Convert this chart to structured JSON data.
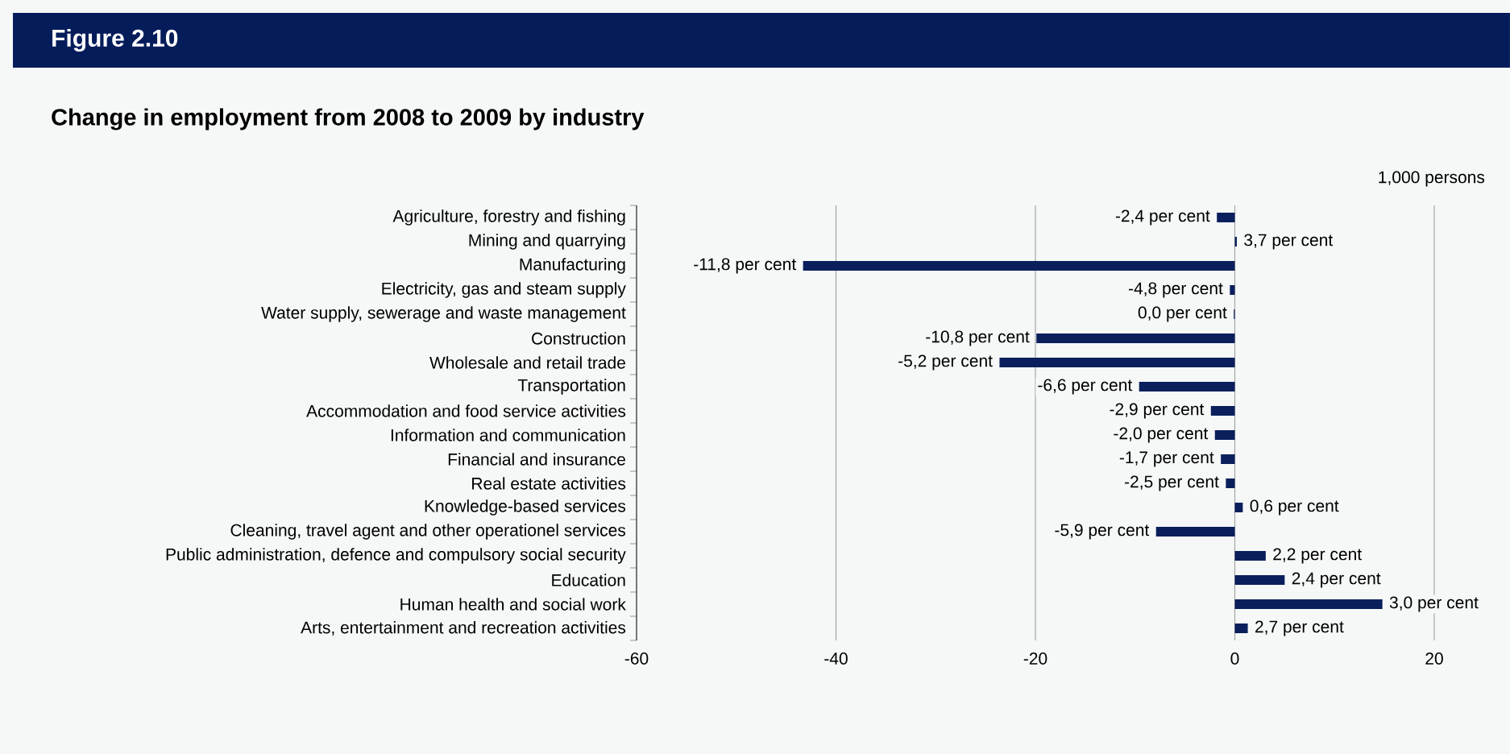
{
  "chart_data": {
    "type": "bar",
    "orientation": "horizontal",
    "title": "Figure 2.10",
    "subtitle": "Change in employment from 2008 to 2009 by industry",
    "categories": [
      "Agriculture, forestry and fishing",
      "Mining and quarrying",
      "Manufacturing",
      "Electricity, gas and steam supply",
      "Water supply, sewerage and waste management",
      "Construction",
      "Wholesale and retail trade",
      "Transportation",
      "Accommodation and food service activities",
      "Information and communication",
      "Financial and insurance",
      "Real estate activities",
      "Knowledge-based services",
      "Cleaning, travel agent and other operationel services",
      "Public administration, defence and compulsory social security",
      "Education",
      "Human health and social work",
      "Arts, entertainment and recreation activities"
    ],
    "values": [
      -1.8,
      0.2,
      -43.3,
      -0.5,
      -0.1,
      -19.9,
      -23.6,
      -9.6,
      -2.4,
      -2.0,
      -1.4,
      -0.9,
      0.8,
      -7.9,
      3.1,
      5.0,
      14.8,
      1.3
    ],
    "annotations": [
      "1,000 persons",
      {
        "text": "-2,4 per cent",
        "x": -1.8,
        "y": "Agriculture, forestry and fishing"
      },
      {
        "text": "3,7 per cent",
        "x": 0.2,
        "y": "Mining and quarrying"
      },
      {
        "text": "-11,8 per cent",
        "x": -43.3,
        "y": "Manufacturing"
      },
      {
        "text": "-4,8 per cent",
        "x": -0.5,
        "y": "Electricity, gas and steam supply"
      },
      {
        "text": "0,0 per cent",
        "x": -0.1,
        "y": "Water supply, sewerage and waste management"
      },
      {
        "text": "-10,8 per cent",
        "x": -19.9,
        "y": "Construction"
      },
      {
        "text": "-5,2 per cent",
        "x": -23.6,
        "y": "Wholesale and retail trade"
      },
      {
        "text": "-6,6 per cent",
        "x": -9.6,
        "y": "Transportation"
      },
      {
        "text": "-2,9 per cent",
        "x": -2.4,
        "y": "Accommodation and food service activities"
      },
      {
        "text": "-2,0 per cent",
        "x": -2.0,
        "y": "Information and communication"
      },
      {
        "text": "-1,7 per cent",
        "x": -1.4,
        "y": "Financial and insurance"
      },
      {
        "text": "-2,5 per cent",
        "x": -0.9,
        "y": "Real estate activities"
      },
      {
        "text": "0,6 per cent",
        "x": 0.8,
        "y": "Knowledge-based services"
      },
      {
        "text": "-5,9 per cent",
        "x": -7.9,
        "y": "Cleaning, travel agent and other operationel services"
      },
      {
        "text": "2,2 per cent",
        "x": 3.1,
        "y": "Public administration, defence and compulsory social security"
      },
      {
        "text": "2,4 per cent",
        "x": 5.0,
        "y": "Education"
      },
      {
        "text": "3,0 per cent",
        "x": 14.8,
        "y": "Human health and social work"
      },
      {
        "text": "2,7 per cent",
        "x": 1.3,
        "y": "Arts, entertainment and recreation activities"
      }
    ],
    "color": "#0a1f5c",
    "xlim": [
      -60,
      20
    ],
    "xticks": [
      -60,
      -40,
      -20,
      0,
      20
    ],
    "grid": "x"
  }
}
